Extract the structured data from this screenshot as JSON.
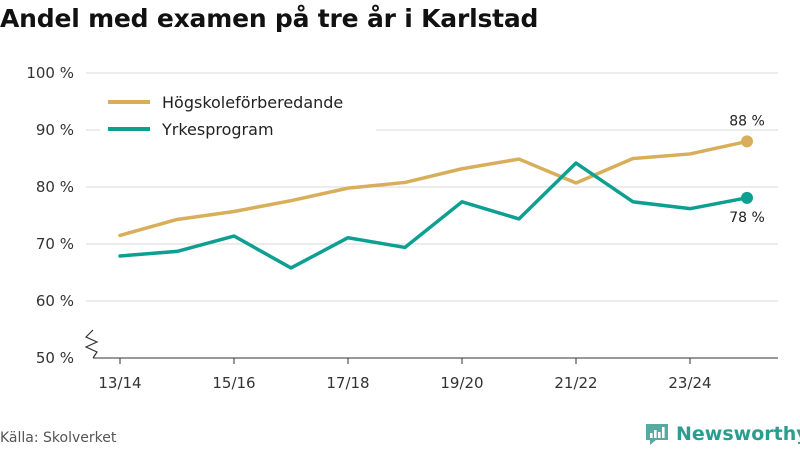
{
  "title": "Andel med examen på tre år i Karlstad",
  "source": "Källa: Skolverket",
  "brand": "Newsworthy",
  "colors": {
    "series1": "#D9AE5B",
    "series2": "#0E9F93",
    "grid": "#d9d9d9",
    "axis": "#333333",
    "brand": "#2a9d8f"
  },
  "chart_data": {
    "type": "line",
    "title": "Andel med examen på tre år i Karlstad",
    "xlabel": "",
    "ylabel": "",
    "ylim": [
      50,
      100
    ],
    "yticks": [
      50,
      60,
      70,
      80,
      90,
      100
    ],
    "ytick_labels": [
      "50 %",
      "60 %",
      "70 %",
      "80 %",
      "90 %",
      "100 %"
    ],
    "x": [
      "13/14",
      "14/15",
      "15/16",
      "16/17",
      "17/18",
      "18/19",
      "19/20",
      "20/21",
      "21/22",
      "22/23",
      "23/24",
      "24/25"
    ],
    "xtick_labels": [
      "13/14",
      "15/16",
      "17/18",
      "19/20",
      "21/22",
      "23/24"
    ],
    "legend_position": "top-left",
    "grid": true,
    "series": [
      {
        "name": "Högskoleförberedande",
        "values": [
          71.5,
          74.3,
          75.7,
          77.6,
          79.8,
          80.8,
          83.2,
          84.9,
          80.7,
          85.0,
          85.8,
          88.0
        ],
        "end_label": "88 %"
      },
      {
        "name": "Yrkesprogram",
        "values": [
          67.9,
          68.7,
          71.4,
          65.8,
          71.1,
          69.4,
          77.4,
          74.4,
          84.2,
          77.4,
          76.2,
          78.1
        ],
        "end_label": "78 %"
      }
    ]
  }
}
